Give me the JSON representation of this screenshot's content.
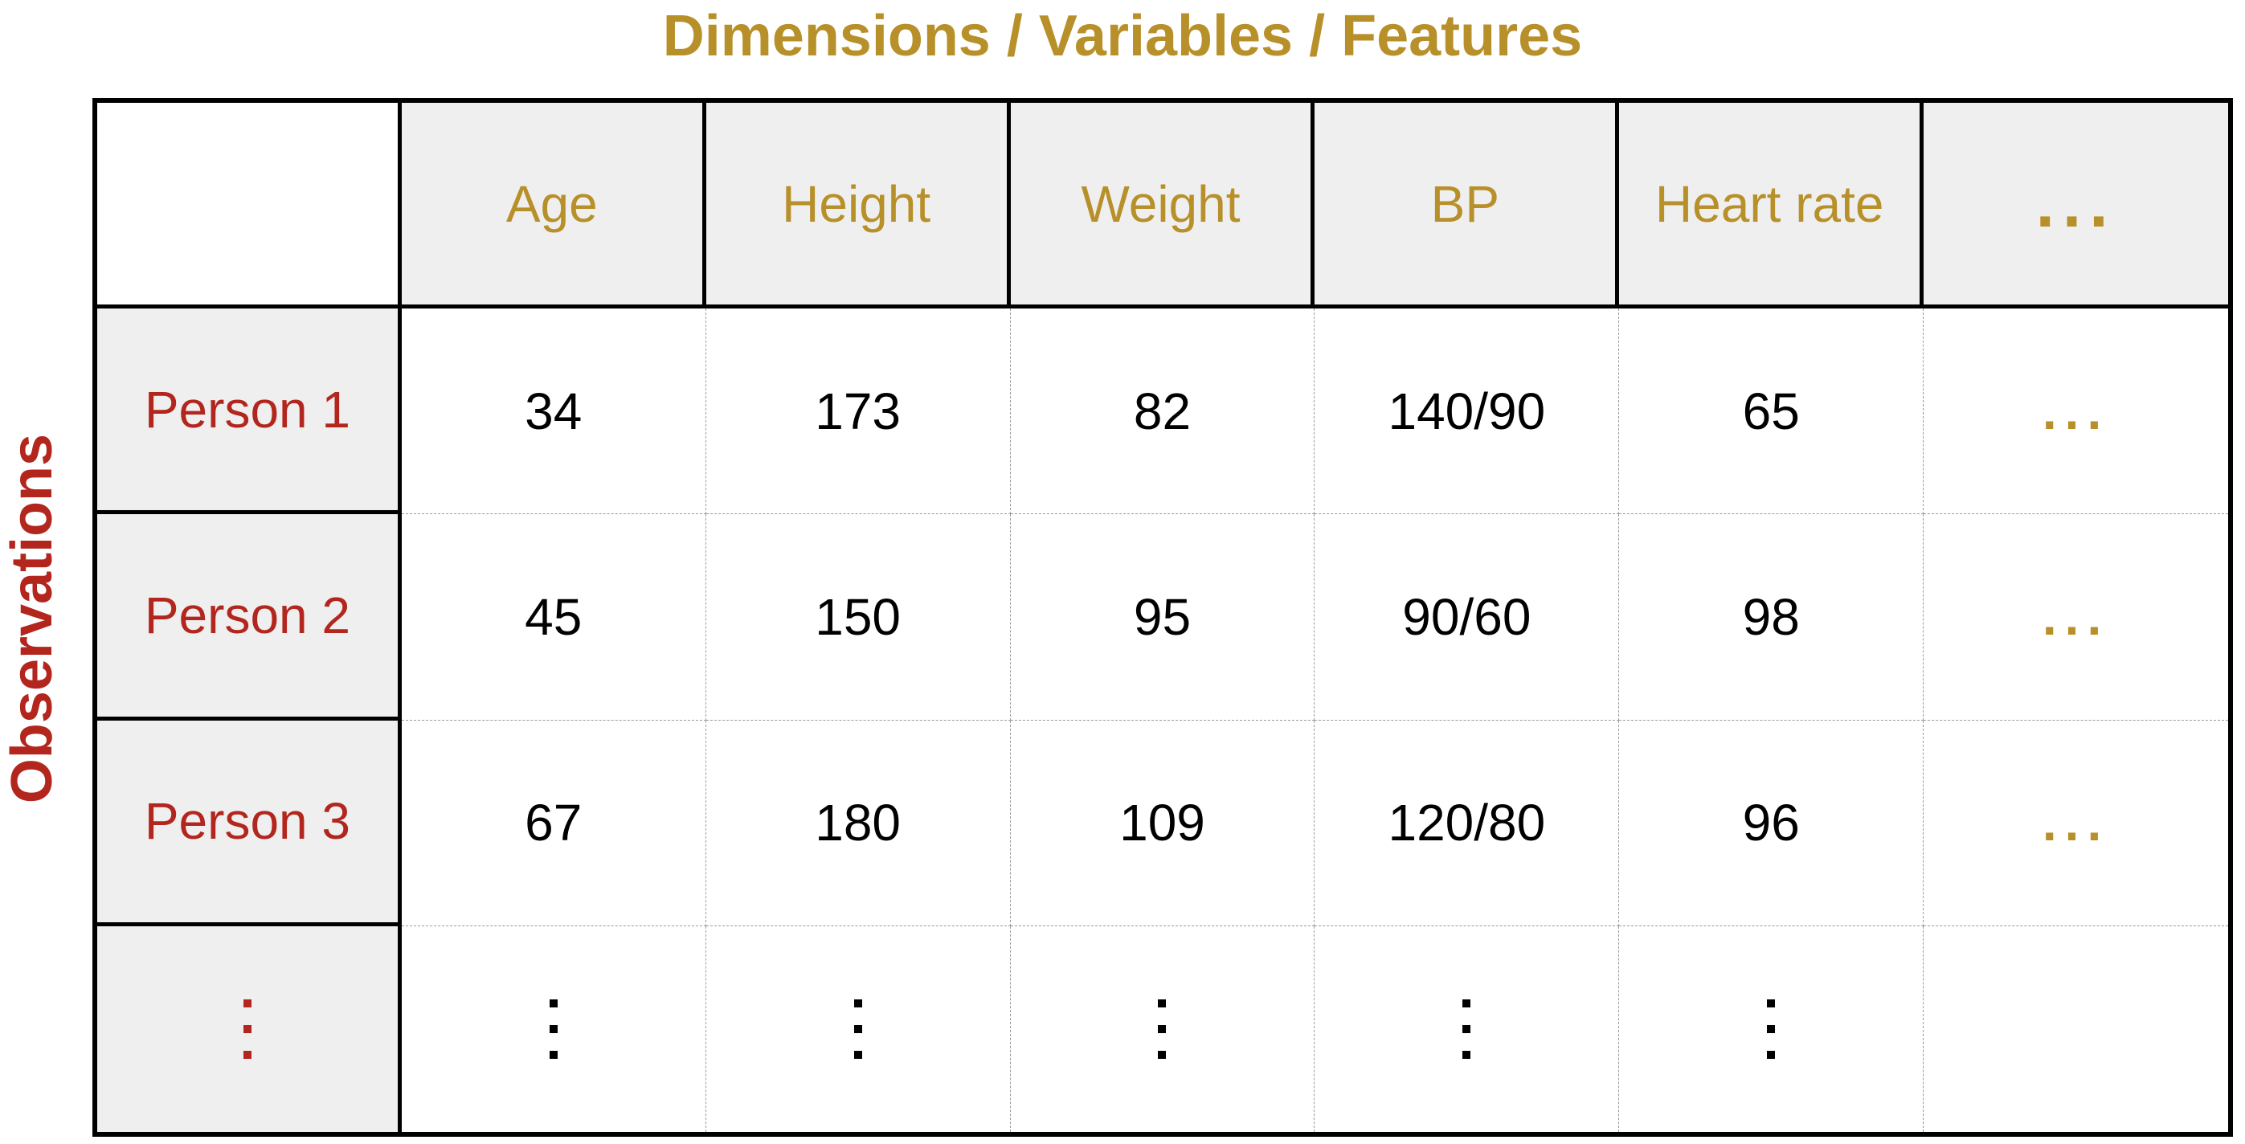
{
  "title_top": "Dimensions / Variables / Features",
  "title_side": "Observations",
  "columns": [
    "Age",
    "Height",
    "Weight",
    "BP",
    "Heart rate",
    "..."
  ],
  "rows": [
    {
      "label": "Person 1",
      "values": [
        "34",
        "173",
        "82",
        "140/90",
        "65",
        "..."
      ]
    },
    {
      "label": "Person 2",
      "values": [
        "45",
        "150",
        "95",
        "90/60",
        "98",
        "..."
      ]
    },
    {
      "label": "Person 3",
      "values": [
        "67",
        "180",
        "109",
        "120/80",
        "96",
        "..."
      ]
    }
  ],
  "colors": {
    "feature_gold": "#b8902a",
    "observation_red": "#b3261e",
    "header_fill": "#efefef"
  }
}
